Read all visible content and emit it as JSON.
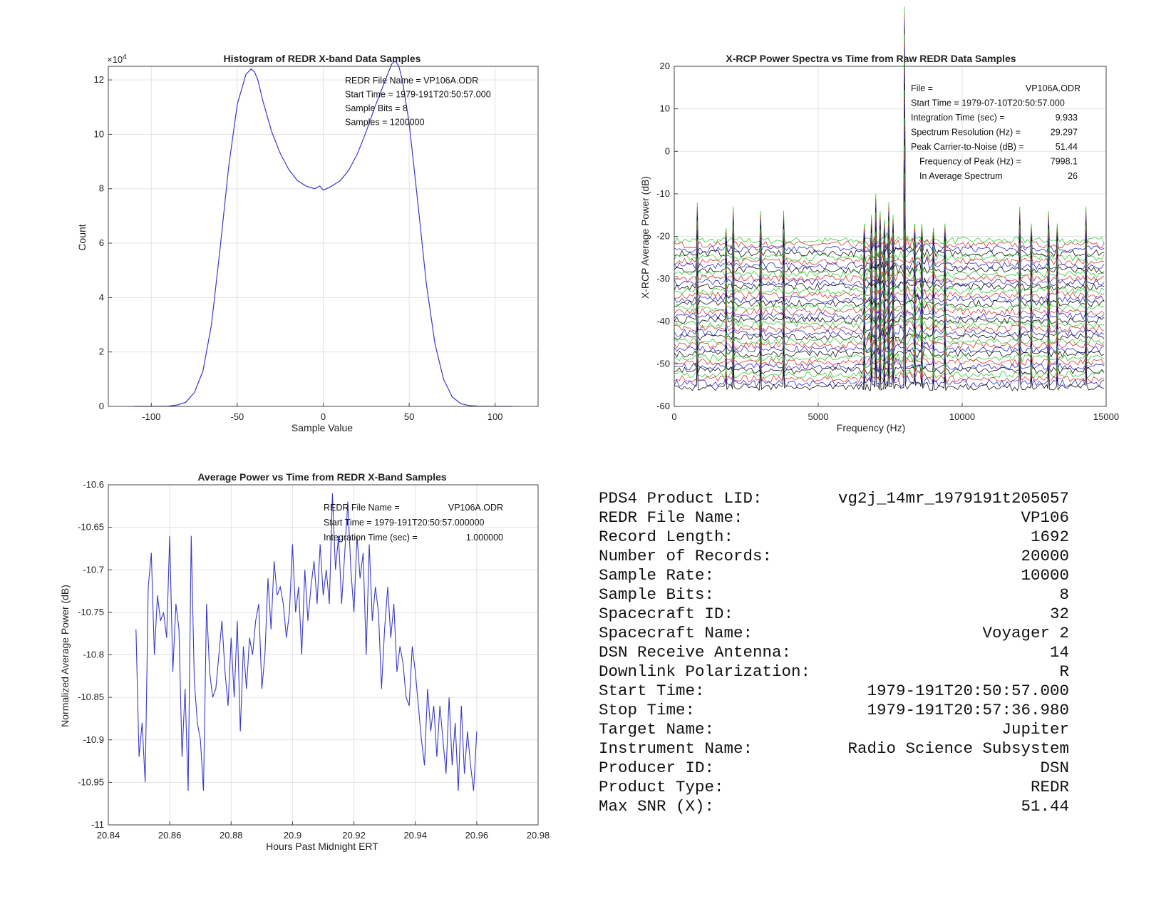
{
  "chart_data": [
    {
      "type": "line",
      "title": "Histogram of REDR X-band Data Samples",
      "xlabel": "Sample Value",
      "ylabel": "Count",
      "y_multiplier": "×10",
      "y_exponent": "4",
      "xlim": [
        -125,
        125
      ],
      "ylim": [
        0,
        12.5
      ],
      "xticks": [
        -100,
        -50,
        0,
        50,
        100
      ],
      "yticks": [
        0,
        2,
        4,
        6,
        8,
        10,
        12
      ],
      "grid": true,
      "color": "#3a3acc",
      "series": [
        {
          "name": "histogram",
          "x": [
            -110,
            -100,
            -90,
            -85,
            -80,
            -75,
            -70,
            -65,
            -60,
            -55,
            -50,
            -45,
            -42,
            -40,
            -38,
            -35,
            -30,
            -25,
            -20,
            -15,
            -10,
            -5,
            -2,
            0,
            2,
            5,
            10,
            15,
            20,
            25,
            30,
            35,
            38,
            40,
            42,
            44,
            46,
            50,
            55,
            60,
            65,
            70,
            75,
            80,
            85,
            90,
            100,
            110
          ],
          "values": [
            0,
            0,
            0.01,
            0.05,
            0.15,
            0.5,
            1.3,
            3.0,
            5.8,
            8.8,
            11.1,
            12.2,
            12.4,
            12.3,
            12.0,
            11.2,
            10.1,
            9.3,
            8.7,
            8.3,
            8.1,
            8.0,
            8.1,
            7.95,
            8.0,
            8.1,
            8.3,
            8.7,
            9.3,
            10.1,
            11.0,
            11.8,
            12.3,
            12.6,
            12.7,
            12.5,
            12.0,
            10.4,
            7.5,
            4.5,
            2.3,
            1.0,
            0.35,
            0.1,
            0.03,
            0.01,
            0,
            0
          ]
        }
      ],
      "annotation": [
        "REDR File Name = VP106A.ODR",
        "Start Time = 1979-191T20:50:57.000",
        "Sample Bits = 8",
        "Samples = 1200000"
      ]
    },
    {
      "type": "line",
      "title": "X-RCP Power Spectra vs Time from Raw REDR Data Samples",
      "xlabel": "Frequency (Hz)",
      "ylabel": "X-RCP Average Power (dB)",
      "xlim": [
        0,
        15000
      ],
      "ylim": [
        -60,
        20
      ],
      "xticks": [
        0,
        5000,
        10000,
        15000
      ],
      "yticks": [
        -60,
        -50,
        -40,
        -30,
        -20,
        -10,
        0,
        10,
        20
      ],
      "grid": true,
      "n_traces": 36,
      "trace_top_db": -21,
      "trace_bottom_db": -55.5,
      "trace_colors": [
        "#2ecc2e",
        "#d43a3a",
        "#2a2ad0",
        "#111111"
      ],
      "peaks": [
        {
          "freq": 800,
          "height_db": 9
        },
        {
          "freq": 1800,
          "height_db": 3
        },
        {
          "freq": 2050,
          "height_db": 8
        },
        {
          "freq": 3000,
          "height_db": 7
        },
        {
          "freq": 3800,
          "height_db": 7
        },
        {
          "freq": 6600,
          "height_db": 4
        },
        {
          "freq": 6850,
          "height_db": 6
        },
        {
          "freq": 7000,
          "height_db": 11
        },
        {
          "freq": 7150,
          "height_db": 7
        },
        {
          "freq": 7300,
          "height_db": 5
        },
        {
          "freq": 7450,
          "height_db": 9
        },
        {
          "freq": 7600,
          "height_db": 6
        },
        {
          "freq": 7998,
          "height_db": 35
        },
        {
          "freq": 8350,
          "height_db": 4
        },
        {
          "freq": 8600,
          "height_db": 4
        },
        {
          "freq": 9000,
          "height_db": 3
        },
        {
          "freq": 9400,
          "height_db": 4
        },
        {
          "freq": 12000,
          "height_db": 8
        },
        {
          "freq": 12400,
          "height_db": 4
        },
        {
          "freq": 13000,
          "height_db": 7
        },
        {
          "freq": 13300,
          "height_db": 4
        },
        {
          "freq": 14300,
          "height_db": 8
        }
      ],
      "annotation": [
        {
          "label": "File =",
          "value": "VP106A.ODR"
        },
        {
          "label": "Start Time = 1979-07-10T20:50:57.000",
          "value": ""
        },
        {
          "label": "Integration Time (sec) =",
          "value": "9.933"
        },
        {
          "label": "Spectrum Resolution (Hz) =",
          "value": "29.297"
        },
        {
          "label": "Peak Carrier-to-Noise (dB) =",
          "value": "51.44"
        },
        {
          "label": "Frequency of Peak (Hz) =",
          "value": "7998.1"
        },
        {
          "label": "In Average Spectrum",
          "value": "26"
        }
      ]
    },
    {
      "type": "line",
      "title": "Average Power vs Time from REDR X-Band Samples",
      "xlabel": "Hours Past Midnight ERT",
      "ylabel": "Normalized Average Power (dB)",
      "xlim": [
        20.84,
        20.98
      ],
      "ylim": [
        -11,
        -10.6
      ],
      "xticks": [
        20.84,
        20.86,
        20.88,
        20.9,
        20.92,
        20.94,
        20.96,
        20.98
      ],
      "yticks": [
        -11,
        -10.95,
        -10.9,
        -10.85,
        -10.8,
        -10.75,
        -10.7,
        -10.65,
        -10.6
      ],
      "grid": true,
      "color": "#3a3acc",
      "series": [
        {
          "name": "power",
          "x": [
            20.849,
            20.85,
            20.851,
            20.852,
            20.853,
            20.854,
            20.855,
            20.856,
            20.857,
            20.858,
            20.859,
            20.86,
            20.861,
            20.862,
            20.863,
            20.864,
            20.865,
            20.866,
            20.867,
            20.868,
            20.869,
            20.87,
            20.871,
            20.872,
            20.873,
            20.874,
            20.875,
            20.876,
            20.877,
            20.878,
            20.879,
            20.88,
            20.881,
            20.882,
            20.883,
            20.884,
            20.885,
            20.886,
            20.887,
            20.888,
            20.889,
            20.89,
            20.891,
            20.892,
            20.893,
            20.894,
            20.895,
            20.896,
            20.897,
            20.898,
            20.899,
            20.9,
            20.901,
            20.902,
            20.903,
            20.904,
            20.905,
            20.906,
            20.907,
            20.908,
            20.909,
            20.91,
            20.911,
            20.912,
            20.913,
            20.914,
            20.915,
            20.916,
            20.917,
            20.918,
            20.919,
            20.92,
            20.921,
            20.922,
            20.923,
            20.924,
            20.925,
            20.926,
            20.927,
            20.928,
            20.929,
            20.93,
            20.931,
            20.932,
            20.933,
            20.934,
            20.935,
            20.936,
            20.937,
            20.938,
            20.939,
            20.94,
            20.941,
            20.942,
            20.943,
            20.944,
            20.945,
            20.946,
            20.947,
            20.948,
            20.949,
            20.95,
            20.951,
            20.952,
            20.953,
            20.954,
            20.955,
            20.956,
            20.957,
            20.958,
            20.959,
            20.96
          ],
          "values": [
            -10.77,
            -10.92,
            -10.88,
            -10.95,
            -10.72,
            -10.68,
            -10.8,
            -10.73,
            -10.76,
            -10.75,
            -10.78,
            -10.66,
            -10.82,
            -10.74,
            -10.77,
            -10.92,
            -10.84,
            -10.96,
            -10.66,
            -10.83,
            -10.88,
            -10.9,
            -10.96,
            -10.74,
            -10.82,
            -10.85,
            -10.84,
            -10.8,
            -10.76,
            -10.82,
            -10.86,
            -10.78,
            -10.85,
            -10.76,
            -10.89,
            -10.79,
            -10.84,
            -10.78,
            -10.8,
            -10.76,
            -10.74,
            -10.84,
            -10.8,
            -10.71,
            -10.77,
            -10.69,
            -10.73,
            -10.72,
            -10.74,
            -10.78,
            -10.75,
            -10.67,
            -10.75,
            -10.72,
            -10.8,
            -10.7,
            -10.76,
            -10.72,
            -10.69,
            -10.74,
            -10.67,
            -10.73,
            -10.7,
            -10.74,
            -10.61,
            -10.7,
            -10.66,
            -10.74,
            -10.68,
            -10.62,
            -10.7,
            -10.75,
            -10.66,
            -10.71,
            -10.68,
            -10.8,
            -10.67,
            -10.76,
            -10.72,
            -10.75,
            -10.84,
            -10.77,
            -10.72,
            -10.78,
            -10.74,
            -10.82,
            -10.79,
            -10.81,
            -10.85,
            -10.86,
            -10.79,
            -10.82,
            -10.86,
            -10.9,
            -10.93,
            -10.84,
            -10.89,
            -10.86,
            -10.92,
            -10.86,
            -10.9,
            -10.94,
            -10.85,
            -10.93,
            -10.88,
            -10.96,
            -10.86,
            -10.94,
            -10.89,
            -10.93,
            -10.96,
            -10.89
          ]
        }
      ],
      "annotation": [
        {
          "label": "REDR File Name =",
          "value": "VP106A.ODR"
        },
        {
          "label": "Start Time = 1979-191T20:50:57.000000",
          "value": ""
        },
        {
          "label": "Integration Time (sec) =",
          "value": "1.000000"
        }
      ]
    }
  ],
  "info_table": [
    {
      "label": "PDS4 Product LID:",
      "value": "vg2j_14mr_1979191t205057"
    },
    {
      "label": "REDR File Name:",
      "value": "VP106"
    },
    {
      "label": "Record Length:",
      "value": "1692"
    },
    {
      "label": "Number of Records:",
      "value": "20000"
    },
    {
      "label": "Sample Rate:",
      "value": "10000"
    },
    {
      "label": "Sample Bits:",
      "value": "8"
    },
    {
      "label": "Spacecraft ID:",
      "value": "32"
    },
    {
      "label": "Spacecraft Name:",
      "value": "Voyager 2"
    },
    {
      "label": "DSN Receive Antenna:",
      "value": "14"
    },
    {
      "label": "Downlink Polarization:",
      "value": "R"
    },
    {
      "label": "Start Time:",
      "value": "1979-191T20:50:57.000"
    },
    {
      "label": "Stop Time:",
      "value": "1979-191T20:57:36.980"
    },
    {
      "label": "Target Name:",
      "value": "Jupiter"
    },
    {
      "label": "Instrument Name:",
      "value": "Radio Science Subsystem"
    },
    {
      "label": "Producer ID:",
      "value": "DSN"
    },
    {
      "label": "Product Type:",
      "value": "REDR"
    },
    {
      "label": "Max SNR (X):",
      "value": "51.44"
    }
  ]
}
